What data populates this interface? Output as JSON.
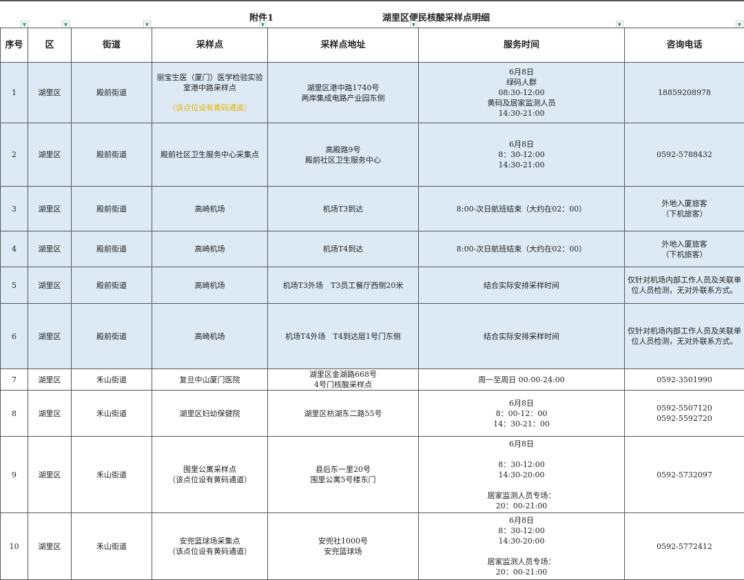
{
  "header": {
    "attachment": "附件1",
    "title": "湖里区便民核酸采样点明细"
  },
  "columns": [
    "序号",
    "区",
    "街道",
    "采样点",
    "采样点地址",
    "服务时间",
    "咨询电话"
  ],
  "colors": {
    "highlight_row": "#dde9f5",
    "note": "#e8b400",
    "filter": "#2a9d6a"
  },
  "rows": [
    {
      "no": "1",
      "district": "湖里区",
      "street": "殿前街道",
      "site": "丽宝生医（厦门）医学检验实验\n室港中路采样点",
      "note": "（该点位设有黄码通道）",
      "address": "湖里区港中路1740号\n两岸集成电路产业园东侧",
      "hours": "6月8日\n绿码人群\n08:30-12:00\n黄码及居家监测人员\n14:30-21:00",
      "phone": "18859208978",
      "highlight": true
    },
    {
      "no": "2",
      "district": "湖里区",
      "street": "殿前街道",
      "site": "殿前社区卫生服务中心采集点",
      "address": "高殿路9号\n殿前社区卫生服务中心",
      "hours": "6月8日\n8：30-12:00\n14:30-21:00",
      "phone": "0592-5788432",
      "highlight": true
    },
    {
      "no": "3",
      "district": "湖里区",
      "street": "殿前街道",
      "site": "高崎机场",
      "address": "机场T3到达",
      "hours": "8:00-次日航班结束（大约在02：00）",
      "phone": "外地入厦旅客\n（下机旅客）",
      "highlight": true
    },
    {
      "no": "4",
      "district": "湖里区",
      "street": "殿前街道",
      "site": "高崎机场",
      "address": "机场T4到达",
      "hours": "8:00-次日航班结束（大约在02：00）",
      "phone": "外地入厦旅客\n（下机旅客）",
      "highlight": true
    },
    {
      "no": "5",
      "district": "湖里区",
      "street": "殿前街道",
      "site": "高崎机场",
      "address": "机场T3外场　T3员工餐厅西侧20米",
      "hours": "结合实际安排采样时间",
      "phone": "仅针对机场内部工作人员及关联单\n位人员检测，无对外联系方式。",
      "highlight": true
    },
    {
      "no": "6",
      "district": "湖里区",
      "street": "殿前街道",
      "site": "高崎机场",
      "address": "机场T4外场　T4到达层1号门东侧",
      "hours": "结合实际安排采样时间",
      "phone": "仅针对机场内部工作人员及关联单\n位人员检测，无对外联系方式。",
      "highlight": true
    },
    {
      "no": "7",
      "district": "湖里区",
      "street": "禾山街道",
      "site": "复旦中山厦门医院",
      "address": "湖里区金湖路668号\n4号门核酸采样点",
      "hours": "周一至周日 00:00-24:00",
      "phone": "0592-3501990",
      "highlight": false
    },
    {
      "no": "8",
      "district": "湖里区",
      "street": "禾山街道",
      "site": "湖里区妇幼保健院",
      "address": "湖里区枋湖东二路55号",
      "hours": "6月8日\n8：00-12：00\n14：30-21：00",
      "phone": "0592-5507120\n0592-5592720",
      "highlight": false
    },
    {
      "no": "9",
      "district": "湖里区",
      "street": "禾山街道",
      "site": "围里公寓采样点\n（该点位设有黄码通道）",
      "address": "县后东一里20号\n围里公寓5号楼东门",
      "hours": "6月8日\n\n8：30-12:00\n14:30-20:00\n\n居家监测人员专场：\n20：00-21:00",
      "phone": "0592-5732097",
      "highlight": false
    },
    {
      "no": "10",
      "district": "湖里区",
      "street": "禾山街道",
      "site": "安兜篮球场采集点\n（该点位设有黄码通道）",
      "address": "安兜社1000号\n安兜篮球场",
      "hours": "6月8日\n8：30-12:00\n14:30-20:00\n\n居家监测人员专场：\n20：00-21:00",
      "phone": "0592-5772412",
      "highlight": false
    }
  ]
}
